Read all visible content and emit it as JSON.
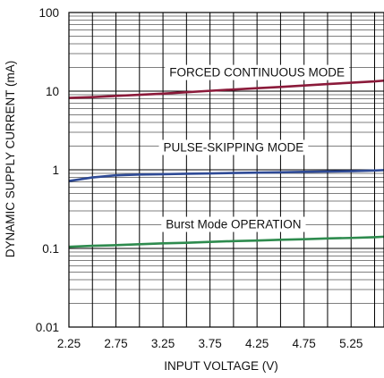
{
  "chart_data": {
    "type": "line",
    "title": "",
    "xlabel": "INPUT VOLTAGE (V)",
    "ylabel": "DYNAMIC SUPPLY CURRENT (mA)",
    "xlim": [
      2.25,
      5.6
    ],
    "ylim": [
      0.01,
      100
    ],
    "yscale": "log",
    "grid": true,
    "x_ticks": [
      2.25,
      2.5,
      2.75,
      3.0,
      3.25,
      3.5,
      3.75,
      4.0,
      4.25,
      4.5,
      4.75,
      5.0,
      5.25,
      5.5
    ],
    "x_tick_labels": [
      "2.25",
      "2.75",
      "3.25",
      "3.75",
      "4.25",
      "4.75",
      "5.25"
    ],
    "x_tick_label_values": [
      2.25,
      2.75,
      3.25,
      3.75,
      4.25,
      4.75,
      5.25
    ],
    "y_tick_labels": [
      "0.01",
      "0.1",
      "1",
      "10",
      "100"
    ],
    "y_tick_label_values": [
      0.01,
      0.1,
      1,
      10,
      100
    ],
    "series": [
      {
        "name": "FORCED CONTINUOUS MODE",
        "color": "#8b1a3a",
        "x": [
          2.25,
          2.5,
          2.75,
          3.0,
          3.25,
          3.5,
          3.75,
          4.0,
          4.25,
          4.5,
          4.75,
          5.0,
          5.25,
          5.5,
          5.6
        ],
        "y": [
          8.2,
          8.4,
          8.7,
          9.0,
          9.3,
          9.7,
          10.1,
          10.5,
          10.9,
          11.3,
          11.8,
          12.3,
          12.8,
          13.3,
          13.6
        ]
      },
      {
        "name": "PULSE-SKIPPING MODE",
        "color": "#2e4a96",
        "x": [
          2.25,
          2.5,
          2.75,
          3.0,
          3.25,
          3.5,
          3.75,
          4.0,
          4.25,
          4.5,
          4.75,
          5.0,
          5.25,
          5.5,
          5.6
        ],
        "y": [
          0.72,
          0.8,
          0.85,
          0.87,
          0.88,
          0.89,
          0.9,
          0.91,
          0.92,
          0.93,
          0.94,
          0.95,
          0.96,
          0.98,
          0.99
        ]
      },
      {
        "name": "Burst Mode OPERATION",
        "color": "#2e8b4e",
        "x": [
          2.25,
          2.5,
          2.75,
          3.0,
          3.25,
          3.5,
          3.75,
          4.0,
          4.25,
          4.5,
          4.75,
          5.0,
          5.25,
          5.5,
          5.6
        ],
        "y": [
          0.105,
          0.108,
          0.11,
          0.113,
          0.116,
          0.118,
          0.121,
          0.124,
          0.126,
          0.129,
          0.131,
          0.134,
          0.136,
          0.139,
          0.141
        ]
      }
    ]
  }
}
